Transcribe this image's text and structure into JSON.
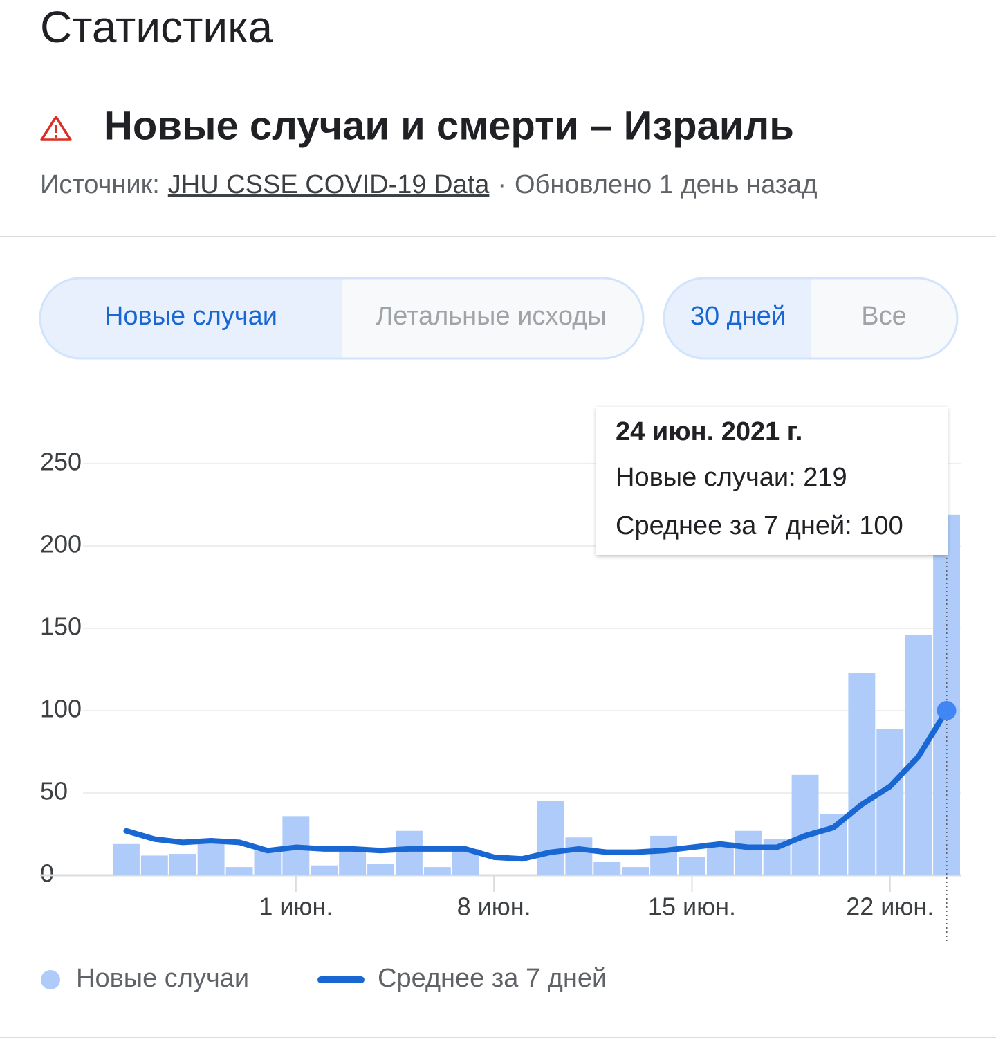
{
  "header": {
    "title": "Статистика"
  },
  "card": {
    "title": "Новые случаи и смерти – Израиль",
    "source_label": "Источник:",
    "source_link": "JHU CSSE COVID-19 Data",
    "separator": "·",
    "updated": "Обновлено 1 день назад"
  },
  "tabs": {
    "metric": [
      "Новые случаи",
      "Летальные исходы"
    ],
    "range": [
      "30 дней",
      "Все"
    ]
  },
  "chart_data": {
    "type": "bar",
    "categories": [
      null,
      null,
      null,
      null,
      null,
      null,
      "1 июн.",
      null,
      null,
      null,
      null,
      null,
      null,
      "8 июн.",
      null,
      null,
      null,
      null,
      null,
      null,
      "15 июн.",
      null,
      null,
      null,
      null,
      null,
      null,
      "22 июн.",
      null,
      null
    ],
    "series": [
      {
        "name": "Новые случаи",
        "type": "bar",
        "color": "#aecbfa",
        "values": [
          19,
          12,
          13,
          20,
          5,
          15,
          36,
          6,
          17,
          7,
          27,
          5,
          16,
          0,
          0,
          45,
          23,
          8,
          5,
          24,
          11,
          20,
          27,
          22,
          61,
          37,
          123,
          89,
          146,
          219
        ]
      },
      {
        "name": "Среднее за 7 дней",
        "type": "line",
        "color": "#1967d2",
        "values": [
          27,
          22,
          20,
          21,
          20,
          15,
          17,
          16,
          16,
          15,
          16,
          16,
          16,
          11,
          10,
          14,
          16,
          14,
          14,
          15,
          17,
          19,
          17,
          17,
          24,
          29,
          43,
          54,
          72,
          100
        ]
      }
    ],
    "ylim": [
      0,
      250
    ],
    "yticks": [
      0,
      50,
      100,
      150,
      200,
      250
    ],
    "grid": true,
    "highlight_color": "#4285f4",
    "tooltip": {
      "date": "24 июн. 2021 г.",
      "lines": [
        "Новые случаи: 219",
        "Среднее за 7 дней: 100"
      ]
    }
  }
}
